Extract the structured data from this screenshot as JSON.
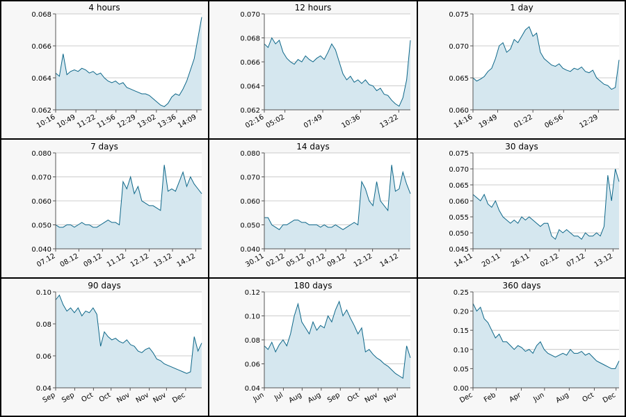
{
  "chart_data": [
    {
      "type": "line",
      "title": "4 hours",
      "color": "#0c6688",
      "fill_color": "#d5e7ef",
      "grid": true,
      "values": [
        0.0643,
        0.0641,
        0.0655,
        0.0642,
        0.0644,
        0.0645,
        0.0644,
        0.0646,
        0.0645,
        0.0643,
        0.0644,
        0.0642,
        0.0643,
        0.064,
        0.0638,
        0.0637,
        0.0638,
        0.0636,
        0.0637,
        0.0634,
        0.0633,
        0.0632,
        0.0631,
        0.063,
        0.063,
        0.0629,
        0.0627,
        0.0625,
        0.0623,
        0.0622,
        0.0624,
        0.0628,
        0.063,
        0.0629,
        0.0633,
        0.0638,
        0.0645,
        0.0652,
        0.0665,
        0.0678
      ],
      "xlim": [
        0,
        39
      ],
      "xticks": [
        {
          "value": 0,
          "label": "10:16"
        },
        {
          "value": 5.4,
          "label": "10:49"
        },
        {
          "value": 10.8,
          "label": "11:22"
        },
        {
          "value": 16.1,
          "label": "11:56"
        },
        {
          "value": 21.5,
          "label": "12:29"
        },
        {
          "value": 26.9,
          "label": "13:02"
        },
        {
          "value": 32.3,
          "label": "13:36"
        },
        {
          "value": 37.7,
          "label": "14:09"
        }
      ],
      "ylim": [
        0.062,
        0.068
      ],
      "yticks": [
        0.062,
        0.064,
        0.066,
        0.068
      ]
    },
    {
      "type": "line",
      "title": "12 hours",
      "color": "#0c6688",
      "fill_color": "#d5e7ef",
      "grid": true,
      "values": [
        0.0675,
        0.0672,
        0.068,
        0.0675,
        0.0678,
        0.0668,
        0.0663,
        0.066,
        0.0658,
        0.0662,
        0.066,
        0.0665,
        0.0662,
        0.066,
        0.0663,
        0.0665,
        0.0662,
        0.0668,
        0.0675,
        0.067,
        0.066,
        0.065,
        0.0645,
        0.0648,
        0.0643,
        0.0645,
        0.0642,
        0.0645,
        0.0641,
        0.064,
        0.0636,
        0.0638,
        0.0633,
        0.0632,
        0.0628,
        0.0625,
        0.0623,
        0.063,
        0.0645,
        0.0678
      ],
      "xlim": [
        0,
        39
      ],
      "xticks": [
        {
          "value": 0,
          "label": "02:16"
        },
        {
          "value": 5.5,
          "label": "05:02"
        },
        {
          "value": 15.6,
          "label": "07:49"
        },
        {
          "value": 25.7,
          "label": "10:36"
        },
        {
          "value": 35.9,
          "label": "13:22"
        }
      ],
      "ylim": [
        0.062,
        0.07
      ],
      "yticks": [
        0.062,
        0.064,
        0.066,
        0.068,
        {
          "value": 0.07,
          "label": "0.070"
        }
      ]
    },
    {
      "type": "line",
      "title": "1 day",
      "color": "#0c6688",
      "fill_color": "#d5e7ef",
      "grid": true,
      "values": [
        0.065,
        0.0645,
        0.0648,
        0.0652,
        0.066,
        0.0665,
        0.068,
        0.07,
        0.0705,
        0.069,
        0.0695,
        0.071,
        0.0705,
        0.0715,
        0.0725,
        0.073,
        0.0715,
        0.072,
        0.069,
        0.068,
        0.0675,
        0.067,
        0.0668,
        0.0672,
        0.0665,
        0.0662,
        0.066,
        0.0665,
        0.0663,
        0.0667,
        0.066,
        0.0658,
        0.0662,
        0.065,
        0.0645,
        0.064,
        0.0638,
        0.0632,
        0.0635,
        0.0678
      ],
      "xlim": [
        0,
        39
      ],
      "xticks": [
        {
          "value": 0,
          "label": "14:16"
        },
        {
          "value": 6.6,
          "label": "19:49"
        },
        {
          "value": 16,
          "label": "01:22"
        },
        {
          "value": 24.2,
          "label": "06:56"
        },
        {
          "value": 33.5,
          "label": "12:29"
        }
      ],
      "ylim": [
        0.06,
        0.075
      ],
      "yticks": [
        {
          "value": 0.06,
          "label": "0.060"
        },
        0.065,
        {
          "value": 0.07,
          "label": "0.070"
        },
        0.075
      ]
    },
    {
      "type": "line",
      "title": "7 days",
      "color": "#0c6688",
      "fill_color": "#d5e7ef",
      "grid": true,
      "values": [
        0.05,
        0.049,
        0.049,
        0.05,
        0.05,
        0.049,
        0.05,
        0.051,
        0.05,
        0.05,
        0.049,
        0.049,
        0.05,
        0.051,
        0.052,
        0.051,
        0.051,
        0.05,
        0.068,
        0.065,
        0.07,
        0.063,
        0.066,
        0.06,
        0.059,
        0.058,
        0.058,
        0.057,
        0.056,
        0.075,
        0.064,
        0.065,
        0.064,
        0.068,
        0.072,
        0.066,
        0.07,
        0.067,
        0.065,
        0.063
      ],
      "xlim": [
        0,
        39
      ],
      "xticks": [
        {
          "value": 0,
          "label": "07.12"
        },
        {
          "value": 6.2,
          "label": "08.12"
        },
        {
          "value": 12.5,
          "label": "09.12"
        },
        {
          "value": 18.7,
          "label": "11.12"
        },
        {
          "value": 25,
          "label": "12.12"
        },
        {
          "value": 31.2,
          "label": "13.12"
        },
        {
          "value": 37.4,
          "label": "14.12"
        }
      ],
      "ylim": [
        0.04,
        0.08
      ],
      "yticks": [
        {
          "value": 0.04,
          "label": "0.040"
        },
        {
          "value": 0.05,
          "label": "0.050"
        },
        {
          "value": 0.06,
          "label": "0.060"
        },
        {
          "value": 0.07,
          "label": "0.070"
        },
        {
          "value": 0.08,
          "label": "0.080"
        }
      ]
    },
    {
      "type": "line",
      "title": "14 days",
      "color": "#0c6688",
      "fill_color": "#d5e7ef",
      "grid": true,
      "values": [
        0.053,
        0.053,
        0.05,
        0.049,
        0.048,
        0.05,
        0.05,
        0.051,
        0.052,
        0.052,
        0.051,
        0.051,
        0.05,
        0.05,
        0.05,
        0.049,
        0.05,
        0.049,
        0.049,
        0.05,
        0.049,
        0.048,
        0.049,
        0.05,
        0.051,
        0.05,
        0.068,
        0.065,
        0.06,
        0.058,
        0.068,
        0.06,
        0.058,
        0.056,
        0.075,
        0.064,
        0.065,
        0.072,
        0.067,
        0.063
      ],
      "xlim": [
        0,
        39
      ],
      "xticks": [
        {
          "value": 0,
          "label": "30.11"
        },
        {
          "value": 5.5,
          "label": "02.12"
        },
        {
          "value": 10.9,
          "label": "05.12"
        },
        {
          "value": 16.4,
          "label": "07.12"
        },
        {
          "value": 21.8,
          "label": "09.12"
        },
        {
          "value": 28.9,
          "label": "12.12"
        },
        {
          "value": 35.9,
          "label": "14.12"
        }
      ],
      "ylim": [
        0.04,
        0.08
      ],
      "yticks": [
        {
          "value": 0.04,
          "label": "0.040"
        },
        {
          "value": 0.05,
          "label": "0.050"
        },
        {
          "value": 0.06,
          "label": "0.060"
        },
        {
          "value": 0.07,
          "label": "0.070"
        },
        {
          "value": 0.08,
          "label": "0.080"
        }
      ]
    },
    {
      "type": "line",
      "title": "30 days",
      "color": "#0c6688",
      "fill_color": "#d5e7ef",
      "grid": true,
      "values": [
        0.062,
        0.061,
        0.06,
        0.062,
        0.059,
        0.058,
        0.06,
        0.057,
        0.055,
        0.054,
        0.053,
        0.054,
        0.053,
        0.055,
        0.054,
        0.055,
        0.054,
        0.053,
        0.052,
        0.053,
        0.053,
        0.049,
        0.048,
        0.051,
        0.05,
        0.051,
        0.05,
        0.049,
        0.049,
        0.048,
        0.05,
        0.049,
        0.049,
        0.05,
        0.049,
        0.052,
        0.068,
        0.06,
        0.07,
        0.066
      ],
      "xlim": [
        0,
        39
      ],
      "xticks": [
        {
          "value": 0,
          "label": "14.11"
        },
        {
          "value": 7.4,
          "label": "20.11"
        },
        {
          "value": 15.2,
          "label": "26.11"
        },
        {
          "value": 23,
          "label": "02.12"
        },
        {
          "value": 30,
          "label": "07.12"
        },
        {
          "value": 37.4,
          "label": "13.12"
        }
      ],
      "ylim": [
        0.045,
        0.075
      ],
      "yticks": [
        0.045,
        {
          "value": 0.05,
          "label": "0.050"
        },
        0.055,
        {
          "value": 0.06,
          "label": "0.060"
        },
        0.065,
        {
          "value": 0.07,
          "label": "0.070"
        },
        0.075
      ]
    },
    {
      "type": "line",
      "title": "90 days",
      "color": "#0c6688",
      "fill_color": "#d5e7ef",
      "grid": true,
      "values": [
        0.095,
        0.098,
        0.092,
        0.088,
        0.09,
        0.087,
        0.09,
        0.085,
        0.088,
        0.087,
        0.09,
        0.086,
        0.066,
        0.075,
        0.072,
        0.07,
        0.071,
        0.069,
        0.068,
        0.07,
        0.067,
        0.066,
        0.063,
        0.062,
        0.064,
        0.065,
        0.062,
        0.058,
        0.057,
        0.055,
        0.054,
        0.053,
        0.052,
        0.051,
        0.05,
        0.049,
        0.05,
        0.072,
        0.063,
        0.068
      ],
      "xlim": [
        0,
        39
      ],
      "xticks": [
        {
          "value": 0,
          "label": "Sep"
        },
        {
          "value": 5.1,
          "label": "Sep"
        },
        {
          "value": 10.1,
          "label": "Oct"
        },
        {
          "value": 14.8,
          "label": "Oct"
        },
        {
          "value": 19.9,
          "label": "Nov"
        },
        {
          "value": 25,
          "label": "Nov"
        },
        {
          "value": 29.6,
          "label": "Nov"
        },
        {
          "value": 34.7,
          "label": "Dec"
        }
      ],
      "ylim": [
        0.04,
        0.1
      ],
      "yticks": [
        0.04,
        0.06,
        0.08,
        {
          "value": 0.1,
          "label": "0.10"
        }
      ]
    },
    {
      "type": "line",
      "title": "180 days",
      "color": "#0c6688",
      "fill_color": "#d5e7ef",
      "grid": true,
      "values": [
        0.075,
        0.072,
        0.078,
        0.07,
        0.076,
        0.08,
        0.075,
        0.085,
        0.1,
        0.11,
        0.095,
        0.09,
        0.085,
        0.095,
        0.088,
        0.092,
        0.09,
        0.1,
        0.095,
        0.105,
        0.112,
        0.1,
        0.105,
        0.098,
        0.092,
        0.085,
        0.09,
        0.07,
        0.072,
        0.068,
        0.065,
        0.063,
        0.06,
        0.058,
        0.055,
        0.052,
        0.05,
        0.048,
        0.075,
        0.065
      ],
      "xlim": [
        0,
        39
      ],
      "xticks": [
        {
          "value": 0,
          "label": "Jun"
        },
        {
          "value": 5.1,
          "label": "Jul"
        },
        {
          "value": 10.1,
          "label": "Aug"
        },
        {
          "value": 15.2,
          "label": "Aug"
        },
        {
          "value": 20.3,
          "label": "Sep"
        },
        {
          "value": 25.4,
          "label": "Oct"
        },
        {
          "value": 30.4,
          "label": "Nov"
        },
        {
          "value": 35.5,
          "label": "Nov"
        }
      ],
      "ylim": [
        0.04,
        0.12
      ],
      "yticks": [
        0.04,
        0.06,
        0.08,
        {
          "value": 0.1,
          "label": "0.10"
        },
        0.12
      ]
    },
    {
      "type": "line",
      "title": "360 days",
      "color": "#0c6688",
      "fill_color": "#d5e7ef",
      "grid": true,
      "values": [
        0.22,
        0.2,
        0.21,
        0.18,
        0.17,
        0.15,
        0.13,
        0.14,
        0.12,
        0.12,
        0.11,
        0.1,
        0.11,
        0.105,
        0.095,
        0.1,
        0.09,
        0.11,
        0.12,
        0.1,
        0.09,
        0.085,
        0.08,
        0.085,
        0.09,
        0.085,
        0.1,
        0.09,
        0.09,
        0.095,
        0.085,
        0.09,
        0.08,
        0.07,
        0.065,
        0.06,
        0.055,
        0.05,
        0.05,
        0.07
      ],
      "xlim": [
        0,
        39
      ],
      "xticks": [
        {
          "value": 0,
          "label": "Dec"
        },
        {
          "value": 6.2,
          "label": "Feb"
        },
        {
          "value": 12.9,
          "label": "Apr"
        },
        {
          "value": 19.1,
          "label": "Jun"
        },
        {
          "value": 25.7,
          "label": "Aug"
        },
        {
          "value": 32.4,
          "label": "Oct"
        },
        {
          "value": 38.2,
          "label": "Dec"
        }
      ],
      "ylim": [
        0,
        0.25
      ],
      "yticks": [
        {
          "value": 0,
          "label": "0.00"
        },
        0.05,
        {
          "value": 0.1,
          "label": "0.10"
        },
        0.15,
        {
          "value": 0.2,
          "label": "0.20"
        },
        0.25
      ]
    }
  ]
}
